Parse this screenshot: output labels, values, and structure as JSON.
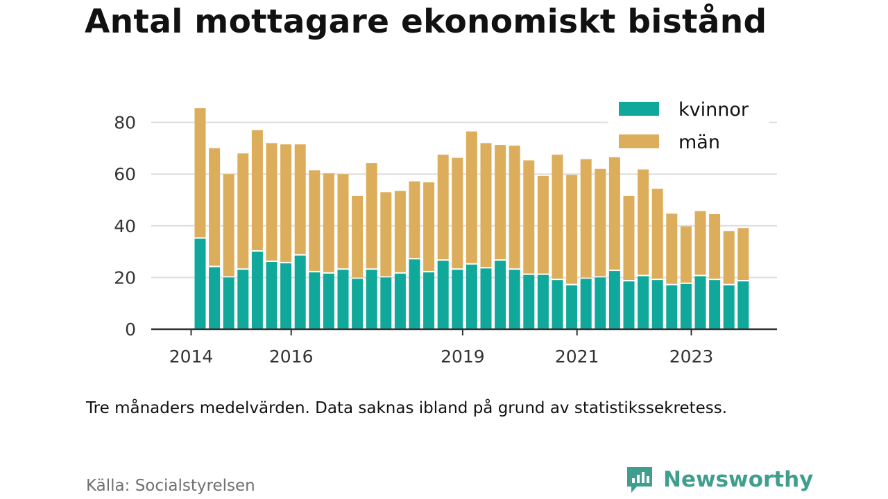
{
  "title": "Antal mottagare ekonomiskt bistånd",
  "note": "Tre månaders medelvärden. Data saknas ibland på grund av statistikssekretess.",
  "source": "Källa: Socialstyrelsen",
  "brand": {
    "name": "Newsworthy",
    "icon": "newsworthy-logo-icon",
    "color": "#3f9e8e"
  },
  "colors": {
    "kvinnor": "#0fa89a",
    "man": "#dcae5c",
    "grid": "#dddddd",
    "axis": "#333333"
  },
  "chart_data": {
    "type": "bar",
    "stacked": true,
    "x_ticks": [
      "2014",
      "2016",
      "2019",
      "2021",
      "2023"
    ],
    "x_tick_index": [
      0,
      7,
      19,
      27,
      35
    ],
    "ylim": [
      0,
      85
    ],
    "y_ticks": [
      "0",
      "20",
      "40",
      "60",
      "80"
    ],
    "y_tick_values": [
      0,
      20,
      40,
      60,
      80
    ],
    "grid": true,
    "legend": "top-right",
    "series": [
      {
        "name": "kvinnor",
        "values": [
          35,
          24,
          20,
          23,
          30,
          26,
          25.5,
          28.5,
          22,
          21.5,
          23,
          19.5,
          23,
          20,
          21.5,
          27,
          22,
          26.5,
          23,
          25,
          23.5,
          26.5,
          23,
          21,
          21,
          19,
          17,
          19.5,
          20,
          22.5,
          18.5,
          20.5,
          19,
          17,
          17.5,
          20.5,
          19,
          17,
          18.5
        ]
      },
      {
        "name": "män",
        "values": [
          50.5,
          46,
          40,
          45,
          47,
          46,
          46,
          43,
          39.5,
          38.8,
          37,
          32,
          41.3,
          33,
          32,
          30.2,
          34.8,
          41,
          43.3,
          51.5,
          48.5,
          44.8,
          48,
          44.3,
          38.3,
          48.5,
          42.7,
          46.3,
          42,
          44,
          33,
          41.3,
          35.3,
          27.7,
          22.3,
          25.2,
          25.5,
          21,
          20.6
        ]
      }
    ]
  }
}
